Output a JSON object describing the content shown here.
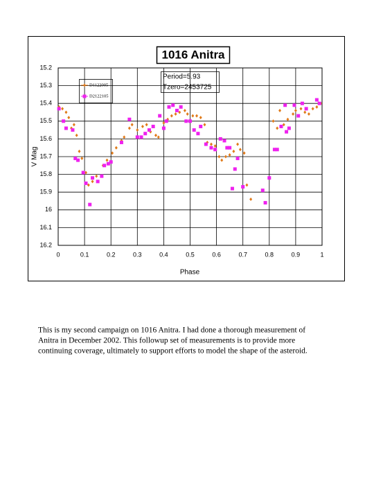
{
  "chart_data": {
    "type": "scatter",
    "title": "1016 Anitra",
    "xlabel": "Phase",
    "ylabel": "V Mag",
    "annotation": [
      "Period=5.93",
      "Tzero=2453725"
    ],
    "xlim": [
      0,
      1
    ],
    "xticks": [
      0,
      0.1,
      0.2,
      0.3,
      0.4,
      0.5,
      0.6,
      0.7,
      0.8,
      0.9,
      1
    ],
    "ylim": [
      15.2,
      16.2
    ],
    "yticks": [
      15.2,
      15.3,
      15.4,
      15.5,
      15.6,
      15.7,
      15.8,
      15.9,
      16,
      16.1,
      16.2
    ],
    "y_reversed": true,
    "grid": true,
    "legend": "upper-left",
    "series": [
      {
        "name": "D1122005",
        "color": "#e07a1a",
        "marker": "diamond",
        "x": [
          0.003,
          0.016,
          0.03,
          0.04,
          0.05,
          0.06,
          0.07,
          0.08,
          0.09,
          0.105,
          0.115,
          0.13,
          0.145,
          0.17,
          0.185,
          0.205,
          0.22,
          0.24,
          0.25,
          0.27,
          0.28,
          0.3,
          0.32,
          0.335,
          0.35,
          0.37,
          0.38,
          0.4,
          0.415,
          0.43,
          0.445,
          0.46,
          0.48,
          0.49,
          0.51,
          0.525,
          0.54,
          0.555,
          0.565,
          0.58,
          0.595,
          0.61,
          0.62,
          0.635,
          0.65,
          0.665,
          0.68,
          0.69,
          0.705,
          0.715,
          0.73,
          0.815,
          0.83,
          0.84,
          0.855,
          0.87,
          0.89,
          0.9,
          0.92,
          0.935,
          0.95,
          0.965,
          0.98,
          0.995
        ],
        "values": [
          15.42,
          15.43,
          15.45,
          15.48,
          15.54,
          15.52,
          15.58,
          15.67,
          15.71,
          15.79,
          15.86,
          15.84,
          15.81,
          15.75,
          15.72,
          15.68,
          15.65,
          15.61,
          15.59,
          15.54,
          15.52,
          15.55,
          15.53,
          15.52,
          15.56,
          15.58,
          15.59,
          15.51,
          15.49,
          15.47,
          15.46,
          15.45,
          15.44,
          15.46,
          15.47,
          15.47,
          15.48,
          15.52,
          15.62,
          15.63,
          15.64,
          15.7,
          15.72,
          15.7,
          15.69,
          15.67,
          15.63,
          15.66,
          15.68,
          15.86,
          15.94,
          15.5,
          15.54,
          15.44,
          15.52,
          15.49,
          15.46,
          15.44,
          15.43,
          15.45,
          15.46,
          15.43,
          15.42,
          15.4
        ]
      },
      {
        "name": "D2122105",
        "color": "#ee22ee",
        "marker": "square",
        "x": [
          0.003,
          0.02,
          0.03,
          0.055,
          0.065,
          0.075,
          0.095,
          0.105,
          0.12,
          0.13,
          0.15,
          0.165,
          0.175,
          0.19,
          0.2,
          0.24,
          0.27,
          0.3,
          0.315,
          0.33,
          0.345,
          0.36,
          0.385,
          0.4,
          0.41,
          0.42,
          0.435,
          0.45,
          0.465,
          0.485,
          0.5,
          0.515,
          0.53,
          0.54,
          0.56,
          0.58,
          0.595,
          0.615,
          0.63,
          0.64,
          0.65,
          0.66,
          0.67,
          0.68,
          0.7,
          0.775,
          0.785,
          0.8,
          0.82,
          0.83,
          0.845,
          0.86,
          0.865,
          0.875,
          0.895,
          0.91,
          0.925,
          0.94,
          0.98,
          0.99
        ],
        "values": [
          15.43,
          15.5,
          15.54,
          15.55,
          15.71,
          15.72,
          15.79,
          15.85,
          15.97,
          15.82,
          15.84,
          15.81,
          15.75,
          15.74,
          15.73,
          15.62,
          15.49,
          15.59,
          15.59,
          15.57,
          15.55,
          15.53,
          15.47,
          15.54,
          15.5,
          15.42,
          15.41,
          15.44,
          15.42,
          15.5,
          15.5,
          15.55,
          15.57,
          15.53,
          15.63,
          15.65,
          15.66,
          15.6,
          15.61,
          15.65,
          15.65,
          15.88,
          15.77,
          15.71,
          15.87,
          15.89,
          15.96,
          15.82,
          15.66,
          15.66,
          15.53,
          15.41,
          15.56,
          15.54,
          15.41,
          15.47,
          15.4,
          15.43,
          15.38,
          15.4
        ]
      }
    ]
  },
  "document": {
    "paragraph_lines": [
      "This is my second campaign on 1016 Anitra.  I had done a thorough measurement of",
      "Anitra in December 2002.  This followup set of measurements is to provide more",
      "continuing coverage, ultimately to support efforts to model the shape of the asteroid."
    ]
  }
}
